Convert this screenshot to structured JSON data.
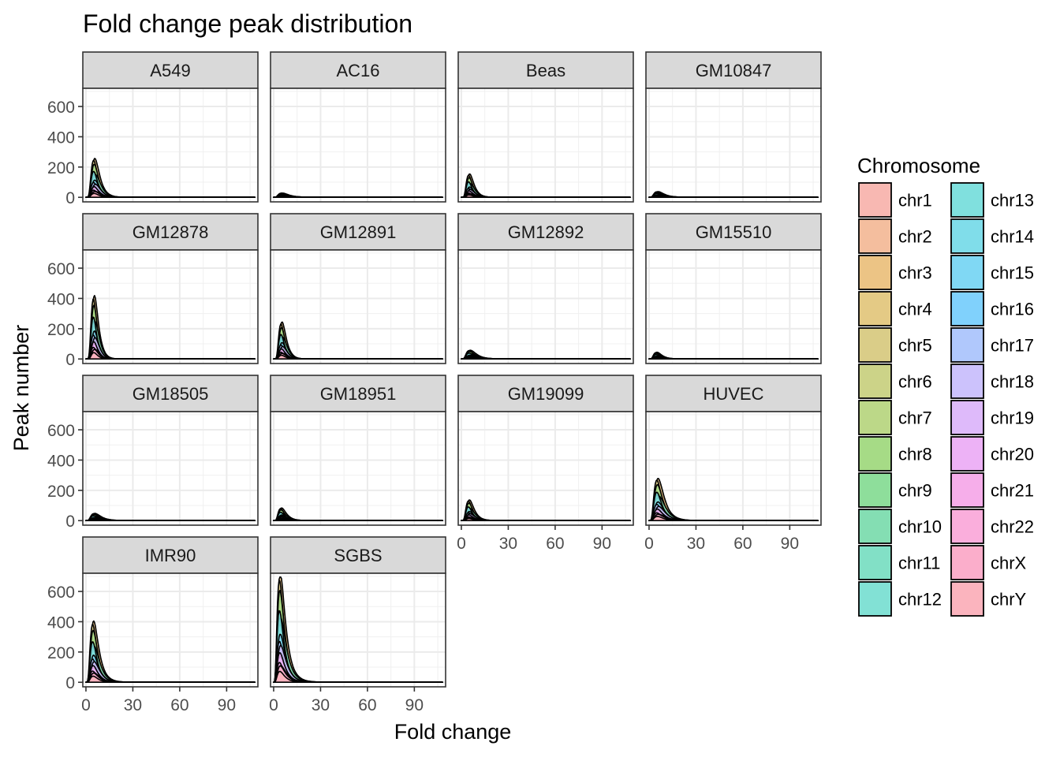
{
  "chart_data": {
    "type": "area",
    "title": "Fold change peak distribution",
    "xlabel": "Fold change",
    "ylabel": "Peak number",
    "xlim": [
      -2,
      110
    ],
    "ylim": [
      -30,
      720
    ],
    "x_ticks": [
      0,
      30,
      60,
      90
    ],
    "y_ticks": [
      0,
      200,
      400,
      600
    ],
    "grid": true,
    "legend_placement": "right",
    "legend_title": "Chromosome",
    "panels": [
      {
        "name": "A549",
        "peak": 265,
        "mode": 6.5,
        "spread": 2.6
      },
      {
        "name": "AC16",
        "peak": 28,
        "mode": 7,
        "spread": 3.2
      },
      {
        "name": "Beas",
        "peak": 160,
        "mode": 6,
        "spread": 2.5
      },
      {
        "name": "GM10847",
        "peak": 38,
        "mode": 7,
        "spread": 3.0
      },
      {
        "name": "GM12878",
        "peak": 440,
        "mode": 6,
        "spread": 2.3
      },
      {
        "name": "GM12891",
        "peak": 255,
        "mode": 6,
        "spread": 2.4
      },
      {
        "name": "GM12892",
        "peak": 58,
        "mode": 7,
        "spread": 3.0
      },
      {
        "name": "GM15510",
        "peak": 45,
        "mode": 6,
        "spread": 2.8
      },
      {
        "name": "GM18505",
        "peak": 48,
        "mode": 7,
        "spread": 3.0
      },
      {
        "name": "GM18951",
        "peak": 85,
        "mode": 6,
        "spread": 2.8
      },
      {
        "name": "GM19099",
        "peak": 140,
        "mode": 6,
        "spread": 2.7
      },
      {
        "name": "HUVEC",
        "peak": 280,
        "mode": 7,
        "spread": 3.0
      },
      {
        "name": "IMR90",
        "peak": 405,
        "mode": 6,
        "spread": 3.0
      },
      {
        "name": "SGBS",
        "peak": 695,
        "mode": 5.5,
        "spread": 3.4
      }
    ],
    "series": [
      {
        "name": "chr1",
        "color": "#F8B8B2"
      },
      {
        "name": "chr2",
        "color": "#F4BE9E"
      },
      {
        "name": "chr3",
        "color": "#ECC485"
      },
      {
        "name": "chr4",
        "color": "#E4CA85"
      },
      {
        "name": "chr5",
        "color": "#DACD88"
      },
      {
        "name": "chr6",
        "color": "#CCD388"
      },
      {
        "name": "chr7",
        "color": "#BCD888"
      },
      {
        "name": "chr8",
        "color": "#A6DB86"
      },
      {
        "name": "chr9",
        "color": "#8EDE9B"
      },
      {
        "name": "chr10",
        "color": "#84DEB3"
      },
      {
        "name": "chr11",
        "color": "#82E0C6"
      },
      {
        "name": "chr12",
        "color": "#82E1D5"
      },
      {
        "name": "chr13",
        "color": "#80E0DE"
      },
      {
        "name": "chr14",
        "color": "#80DDEA"
      },
      {
        "name": "chr15",
        "color": "#80D8F4"
      },
      {
        "name": "chr16",
        "color": "#80D1FC"
      },
      {
        "name": "chr17",
        "color": "#B0C8FC"
      },
      {
        "name": "chr18",
        "color": "#CCC2FC"
      },
      {
        "name": "chr19",
        "color": "#DEBAFA"
      },
      {
        "name": "chr20",
        "color": "#EDB2F6"
      },
      {
        "name": "chr21",
        "color": "#F6AEEA"
      },
      {
        "name": "chr22",
        "color": "#FAAEDC"
      },
      {
        "name": "chrX",
        "color": "#FBAECB"
      },
      {
        "name": "chrY",
        "color": "#FBB4BE"
      }
    ]
  }
}
